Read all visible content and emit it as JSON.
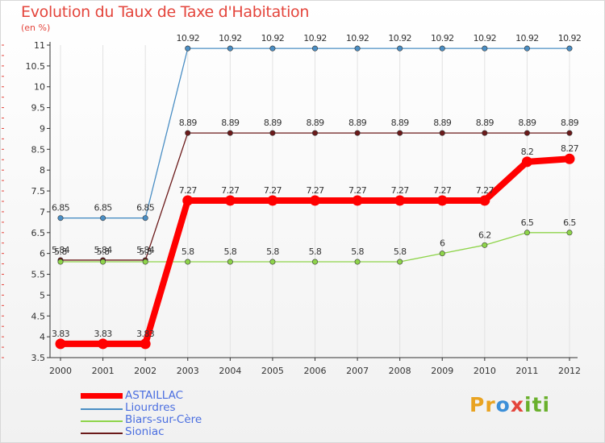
{
  "title": "Evolution du Taux de Taxe d'Habitation",
  "unit_label": "(en %)",
  "legend": [
    {
      "label": "ASTAILLAC"
    },
    {
      "label": "Liourdres"
    },
    {
      "label": "Biars-sur-Cère"
    },
    {
      "label": "Sioniac"
    }
  ],
  "logo": {
    "letters": [
      "P",
      "r",
      "o",
      "x",
      "i",
      "t",
      "i"
    ],
    "colors": [
      "#e9a321",
      "#e9a321",
      "#3c8fd8",
      "#e4453c",
      "#6ab02c",
      "#6ab02c",
      "#6ab02c"
    ]
  },
  "chart_data": {
    "type": "line",
    "title": "Evolution du Taux de Taxe d'Habitation",
    "ylabel": "(en %)",
    "xlabel": "",
    "ylim": [
      3.5,
      11
    ],
    "yticks": [
      "3.5",
      "4",
      "4.5",
      "5",
      "5.5",
      "6",
      "6.5",
      "7",
      "7.5",
      "8",
      "8.5",
      "9",
      "9.5",
      "10",
      "10.5",
      "11"
    ],
    "categories": [
      "2000",
      "2001",
      "2002",
      "2003",
      "2004",
      "2005",
      "2006",
      "2007",
      "2008",
      "2009",
      "2010",
      "2011",
      "2012"
    ],
    "series": [
      {
        "name": "Liourdres",
        "color": "#4a8ec4",
        "values": [
          6.85,
          6.85,
          6.85,
          10.92,
          10.92,
          10.92,
          10.92,
          10.92,
          10.92,
          10.92,
          10.92,
          10.92,
          10.92
        ],
        "labels": [
          "6.85",
          "6.85",
          "6.85",
          "10.92",
          "10.92",
          "10.92",
          "10.92",
          "10.92",
          "10.92",
          "10.92",
          "10.92",
          "10.92",
          "10.92"
        ]
      },
      {
        "name": "Sioniac",
        "color": "#6b1a1a",
        "values": [
          5.84,
          5.84,
          5.84,
          8.89,
          8.89,
          8.89,
          8.89,
          8.89,
          8.89,
          8.89,
          8.89,
          8.89,
          8.89
        ],
        "labels": [
          "5.84",
          "5.84",
          "5.84",
          "8.89",
          "8.89",
          "8.89",
          "8.89",
          "8.89",
          "8.89",
          "8.89",
          "8.89",
          "8.89",
          "8.89"
        ]
      },
      {
        "name": "Biars-sur-Cère",
        "color": "#8ed44a",
        "values": [
          5.8,
          5.8,
          5.8,
          5.8,
          5.8,
          5.8,
          5.8,
          5.8,
          5.8,
          6,
          6.2,
          6.5,
          6.5
        ],
        "labels": [
          "5.8",
          "5.8",
          "5.8",
          "5.8",
          "5.8",
          "5.8",
          "5.8",
          "5.8",
          "5.8",
          "6",
          "6.2",
          "6.5",
          "6.5"
        ]
      },
      {
        "name": "ASTAILLAC",
        "color": "#ff0000",
        "values": [
          3.83,
          3.83,
          3.83,
          7.27,
          7.27,
          7.27,
          7.27,
          7.27,
          7.27,
          7.27,
          7.27,
          8.2,
          8.27
        ],
        "labels": [
          "3.83",
          "3.83",
          "3.83",
          "7.27",
          "7.27",
          "7.27",
          "7.27",
          "7.27",
          "7.27",
          "7.27",
          "7.27",
          "8.2",
          "8.27"
        ]
      }
    ]
  }
}
